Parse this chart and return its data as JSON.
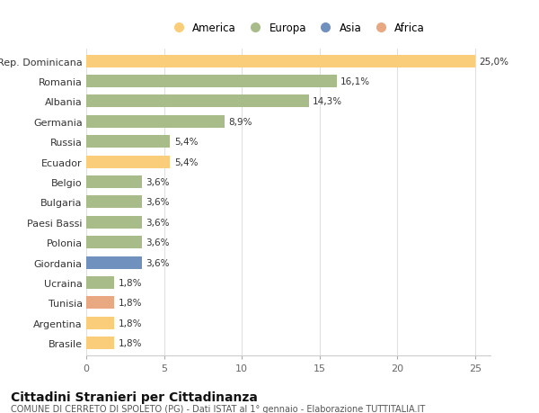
{
  "countries": [
    "Rep. Dominicana",
    "Romania",
    "Albania",
    "Germania",
    "Russia",
    "Ecuador",
    "Belgio",
    "Bulgaria",
    "Paesi Bassi",
    "Polonia",
    "Giordania",
    "Ucraina",
    "Tunisia",
    "Argentina",
    "Brasile"
  ],
  "values": [
    25.0,
    16.1,
    14.3,
    8.9,
    5.4,
    5.4,
    3.6,
    3.6,
    3.6,
    3.6,
    3.6,
    1.8,
    1.8,
    1.8,
    1.8
  ],
  "labels": [
    "25,0%",
    "16,1%",
    "14,3%",
    "8,9%",
    "5,4%",
    "5,4%",
    "3,6%",
    "3,6%",
    "3,6%",
    "3,6%",
    "3,6%",
    "1,8%",
    "1,8%",
    "1,8%",
    "1,8%"
  ],
  "colors": [
    "#FACD7A",
    "#A8BC8A",
    "#A8BC8A",
    "#A8BC8A",
    "#A8BC8A",
    "#FACD7A",
    "#A8BC8A",
    "#A8BC8A",
    "#A8BC8A",
    "#A8BC8A",
    "#7090BE",
    "#A8BC8A",
    "#E8A882",
    "#FACD7A",
    "#FACD7A"
  ],
  "legend_labels": [
    "America",
    "Europa",
    "Asia",
    "Africa"
  ],
  "legend_colors": [
    "#FACD7A",
    "#A8BC8A",
    "#7090BE",
    "#E8A882"
  ],
  "title": "Cittadini Stranieri per Cittadinanza",
  "subtitle": "COMUNE DI CERRETO DI SPOLETO (PG) - Dati ISTAT al 1° gennaio - Elaborazione TUTTITALIA.IT",
  "xlim": [
    0,
    26
  ],
  "xticks": [
    0,
    5,
    10,
    15,
    20,
    25
  ],
  "plot_bg": "#ffffff",
  "fig_bg": "#ffffff",
  "grid_color": "#e0e0e0",
  "bar_height": 0.62,
  "label_fontsize": 7.5,
  "ytick_fontsize": 8,
  "xtick_fontsize": 8,
  "title_fontsize": 10,
  "subtitle_fontsize": 7,
  "legend_fontsize": 8.5
}
